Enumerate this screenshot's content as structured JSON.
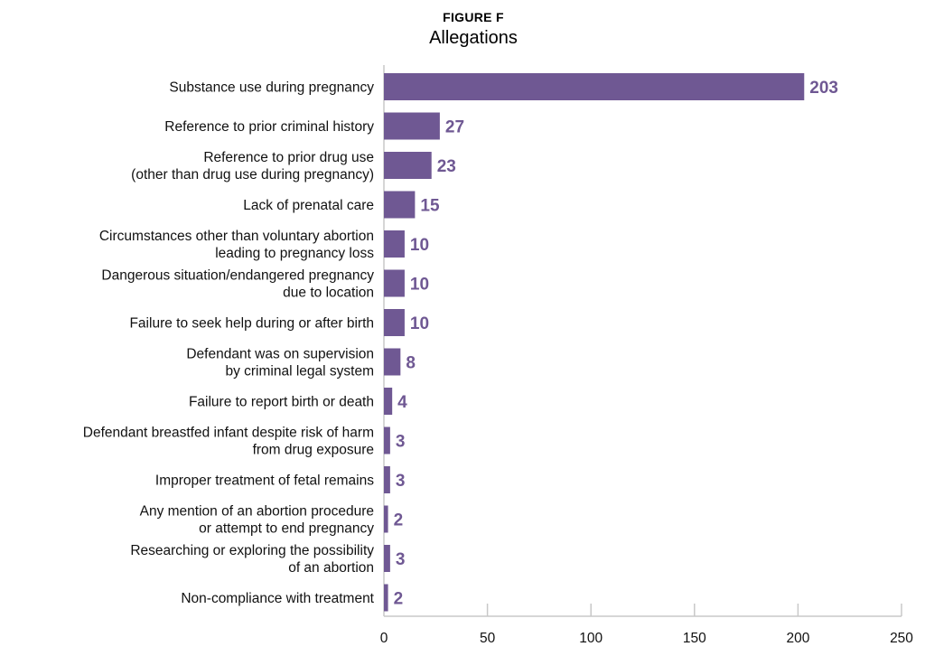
{
  "chart_data": {
    "type": "bar",
    "orientation": "horizontal",
    "figure_label": "FIGURE F",
    "title": "Allegations",
    "xlabel": "",
    "ylabel": "",
    "xlim": [
      0,
      250
    ],
    "xticks": [
      0,
      50,
      100,
      150,
      200,
      250
    ],
    "grid": false,
    "bar_color": "#6f5893",
    "categories": [
      [
        "Substance use during pregnancy"
      ],
      [
        "Reference to prior criminal history"
      ],
      [
        "Reference to prior drug use",
        "(other than drug use during pregnancy)"
      ],
      [
        "Lack of prenatal care"
      ],
      [
        "Circumstances other than voluntary abortion",
        "leading to pregnancy loss"
      ],
      [
        "Dangerous situation/endangered pregnancy",
        "due to location"
      ],
      [
        "Failure to seek help during or after birth"
      ],
      [
        "Defendant was on supervision",
        "by criminal legal system"
      ],
      [
        "Failure to report birth or death"
      ],
      [
        "Defendant breastfed infant despite risk of harm",
        "from drug exposure"
      ],
      [
        "Improper treatment of fetal remains"
      ],
      [
        "Any mention of an abortion procedure",
        "or attempt to end pregnancy"
      ],
      [
        "Researching or exploring the possibility",
        "of an abortion"
      ],
      [
        "Non-compliance with treatment"
      ]
    ],
    "values": [
      203,
      27,
      23,
      15,
      10,
      10,
      10,
      8,
      4,
      3,
      3,
      2,
      3,
      2
    ]
  }
}
